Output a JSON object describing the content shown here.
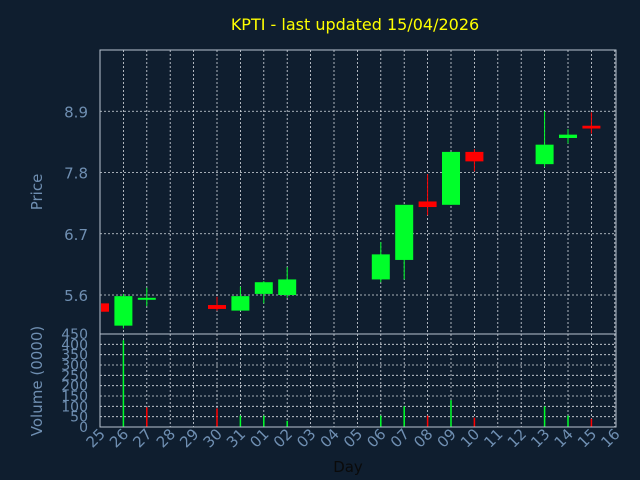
{
  "chart_data": [
    {
      "type": "candlestick",
      "title": "KPTI - last updated 15/04/2026",
      "ylabel": "Price",
      "ylim": [
        4.9,
        10.0
      ],
      "y_ticks": [
        5.6,
        6.7,
        7.8,
        8.9
      ],
      "y_tick_labels": [
        "5.6",
        "6.7",
        "7.8",
        "8.9"
      ],
      "categories": [
        "25",
        "26",
        "27",
        "28",
        "29",
        "30",
        "31",
        "01",
        "02",
        "03",
        "04",
        "05",
        "06",
        "07",
        "08",
        "09",
        "10",
        "11",
        "12",
        "13",
        "14",
        "15",
        "16"
      ],
      "candles": [
        {
          "day": "25",
          "open": 5.45,
          "high": 5.45,
          "low": 5.28,
          "close": 5.3
        },
        {
          "day": "26",
          "open": 5.05,
          "high": 5.62,
          "low": 5.0,
          "close": 5.58
        },
        {
          "day": "27",
          "open": 5.52,
          "high": 5.73,
          "low": 5.4,
          "close": 5.55
        },
        {
          "day": "30",
          "open": 5.42,
          "high": 5.57,
          "low": 5.32,
          "close": 5.35
        },
        {
          "day": "31",
          "open": 5.32,
          "high": 5.75,
          "low": 5.32,
          "close": 5.58
        },
        {
          "day": "01",
          "open": 5.62,
          "high": 5.85,
          "low": 5.45,
          "close": 5.83
        },
        {
          "day": "02",
          "open": 5.6,
          "high": 6.1,
          "low": 5.55,
          "close": 5.88
        },
        {
          "day": "06",
          "open": 5.88,
          "high": 6.55,
          "low": 5.83,
          "close": 6.33
        },
        {
          "day": "07",
          "open": 6.23,
          "high": 7.22,
          "low": 5.88,
          "close": 7.22
        },
        {
          "day": "08",
          "open": 7.28,
          "high": 7.77,
          "low": 7.03,
          "close": 7.18
        },
        {
          "day": "09",
          "open": 7.22,
          "high": 8.17,
          "low": 7.22,
          "close": 8.17
        },
        {
          "day": "10",
          "open": 8.17,
          "high": 8.22,
          "low": 7.82,
          "close": 8.0
        },
        {
          "day": "13",
          "open": 7.95,
          "high": 8.9,
          "low": 7.9,
          "close": 8.3
        },
        {
          "day": "14",
          "open": 8.42,
          "high": 8.58,
          "low": 8.32,
          "close": 8.48
        },
        {
          "day": "15",
          "open": 8.64,
          "high": 8.88,
          "low": 8.5,
          "close": 8.59
        }
      ]
    },
    {
      "type": "bar",
      "xlabel": "Day",
      "ylabel": "Volume (0000)",
      "ylim": [
        0,
        450
      ],
      "y_ticks": [
        0,
        50,
        100,
        150,
        200,
        250,
        300,
        350,
        400,
        450
      ],
      "y_tick_labels": [
        "0",
        "50",
        "100",
        "150",
        "200",
        "250",
        "300",
        "350",
        "400",
        "450"
      ],
      "categories": [
        "25",
        "26",
        "27",
        "28",
        "29",
        "30",
        "31",
        "01",
        "02",
        "03",
        "04",
        "05",
        "06",
        "07",
        "08",
        "09",
        "10",
        "11",
        "12",
        "13",
        "14",
        "15",
        "16"
      ],
      "values": [
        {
          "day": "26",
          "value": 420,
          "direction": "up"
        },
        {
          "day": "27",
          "value": 95,
          "direction": "down"
        },
        {
          "day": "30",
          "value": 90,
          "direction": "down"
        },
        {
          "day": "31",
          "value": 55,
          "direction": "up"
        },
        {
          "day": "01",
          "value": 55,
          "direction": "up"
        },
        {
          "day": "02",
          "value": 30,
          "direction": "up"
        },
        {
          "day": "06",
          "value": 55,
          "direction": "up"
        },
        {
          "day": "07",
          "value": 100,
          "direction": "up"
        },
        {
          "day": "08",
          "value": 55,
          "direction": "down"
        },
        {
          "day": "09",
          "value": 130,
          "direction": "up"
        },
        {
          "day": "10",
          "value": 45,
          "direction": "down"
        },
        {
          "day": "13",
          "value": 100,
          "direction": "up"
        },
        {
          "day": "14",
          "value": 55,
          "direction": "up"
        },
        {
          "day": "15",
          "value": 40,
          "direction": "down"
        }
      ]
    }
  ],
  "colors": {
    "background": "#0f1e2f",
    "frame": "#b8c4d0",
    "grid": "#d8dde3",
    "label": "#6f8fb2",
    "title": "#ffff00",
    "up": "#00ff2a",
    "down": "#ff0000"
  }
}
